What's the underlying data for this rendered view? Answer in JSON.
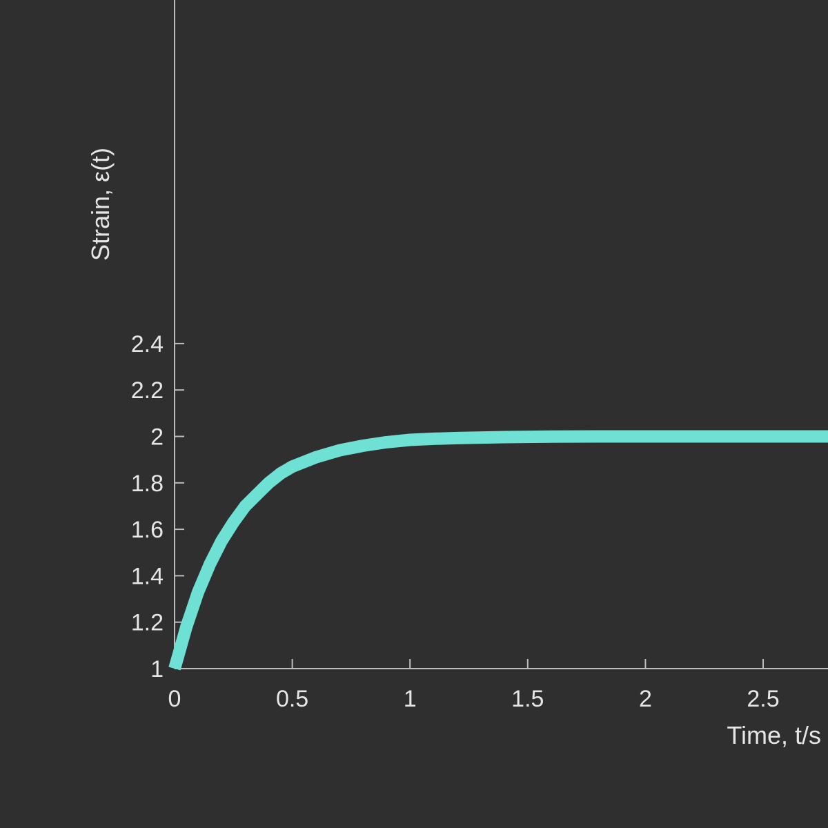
{
  "chart_data": {
    "type": "line",
    "title": "",
    "xlabel": "Time, t/s",
    "ylabel": "Strain, ε(t)",
    "xlim": [
      0,
      2.8
    ],
    "ylim": [
      1,
      2.45
    ],
    "x_ticks": [
      0,
      0.5,
      1,
      1.5,
      2,
      2.5
    ],
    "x_tick_labels": [
      "0",
      "0.5",
      "1",
      "1.5",
      "2",
      "2.5"
    ],
    "y_ticks": [
      1,
      1.2,
      1.4,
      1.6,
      1.8,
      2,
      2.2,
      2.4
    ],
    "y_tick_labels": [
      "1",
      "1.2",
      "1.4",
      "1.6",
      "1.8",
      "2",
      "2.2",
      "2.4"
    ],
    "grid": false,
    "legend": "none",
    "colors": {
      "background": "#2f2f2f",
      "series": "#6fe0d4",
      "axes": "#bdbdbd",
      "text": "#e6e6e6"
    },
    "series": [
      {
        "x": [
          0,
          0.05,
          0.1,
          0.15,
          0.2,
          0.25,
          0.3,
          0.35,
          0.4,
          0.45,
          0.5,
          0.6,
          0.7,
          0.8,
          0.9,
          1.0,
          1.1,
          1.2,
          1.4,
          1.6,
          1.8,
          2.0,
          2.2,
          2.4,
          2.6,
          2.8
        ],
        "values": [
          1.0,
          1.18,
          1.33,
          1.45,
          1.55,
          1.63,
          1.7,
          1.75,
          1.8,
          1.84,
          1.87,
          1.91,
          1.94,
          1.96,
          1.975,
          1.985,
          1.99,
          1.993,
          1.997,
          1.999,
          2.0,
          2.0,
          2.0,
          2.0,
          2.0,
          2.0
        ]
      }
    ]
  }
}
